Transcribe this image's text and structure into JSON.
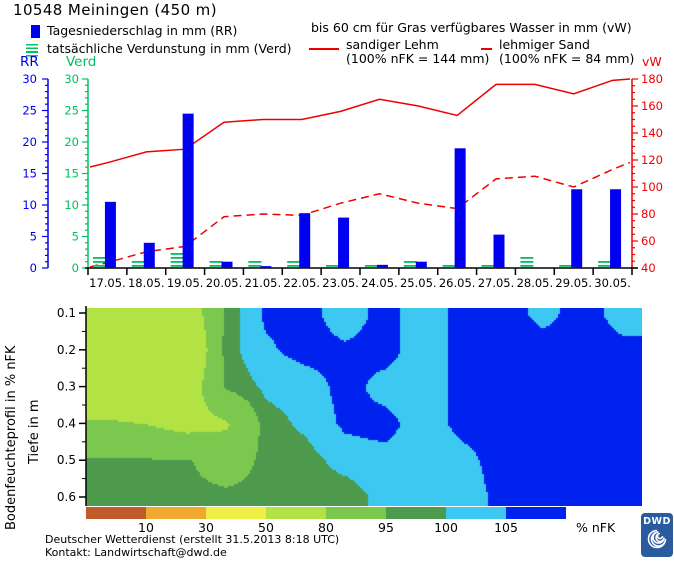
{
  "title": "10548 Meiningen (450 m)",
  "legend": {
    "rr_label": "Tagesniederschlag in mm (RR)",
    "verd_label": "tatsächliche Verdunstung in mm (Verd)",
    "vw_header": "bis 60 cm für Gras verfügbares Wasser in mm (vW)",
    "soil1_name": "sandiger Lehm",
    "soil1_capacity": "(100% nFK = 144 mm)",
    "soil2_name": "lehmiger Sand",
    "soil2_capacity": "(100% nFK = 84 mm)"
  },
  "axis_headers": {
    "left_rr": "RR",
    "left_verd": "Verd",
    "right_vw": "vW"
  },
  "colors": {
    "rr_blue": "#0000f0",
    "verd_green": "#00c060",
    "vw_red": "#ee0000",
    "axis_black": "#000000",
    "logo_blue": "#2a5b9e"
  },
  "chart_data": [
    {
      "type": "bar",
      "title": "Niederschlag, Verdunstung und verfügbares Wasser",
      "categories": [
        "17.05.",
        "18.05.",
        "19.05.",
        "20.05.",
        "21.05.",
        "22.05.",
        "23.05.",
        "24.05.",
        "25.05.",
        "26.05.",
        "27.05.",
        "28.05.",
        "29.05.",
        "30.05."
      ],
      "series": [
        {
          "name": "Tagesniederschlag in mm (RR)",
          "render": "bar",
          "axis": "left",
          "color_key": "rr_blue",
          "values": [
            10.5,
            4,
            24.5,
            1,
            0.3,
            8.7,
            8,
            0.5,
            1,
            19,
            5.3,
            0,
            12.5,
            12.5
          ]
        },
        {
          "name": "tatsächliche Verdunstung in mm (Verd)",
          "render": "dash-bar",
          "axis": "left",
          "color_key": "verd_green",
          "values": [
            2,
            1.5,
            3,
            1.5,
            1.5,
            1.5,
            1,
            1,
            1.5,
            0.5,
            0.5,
            2,
            0.8,
            1.2
          ]
        },
        {
          "name": "sandiger Lehm (vW in mm)",
          "render": "line",
          "axis": "right",
          "color_key": "vw_red",
          "values": [
            118,
            126,
            128,
            148,
            150,
            150,
            156,
            165,
            160,
            153,
            176,
            176,
            169,
            179
          ]
        },
        {
          "name": "lehmiger Sand (vW in mm)",
          "render": "dashed-line",
          "axis": "right",
          "color_key": "vw_red",
          "values": [
            44,
            52,
            56,
            78,
            80,
            79,
            88,
            95,
            88,
            84,
            106,
            108,
            100,
            113
          ]
        }
      ],
      "ylim_left": [
        0,
        30
      ],
      "yticks_left": [
        0,
        5,
        10,
        15,
        20,
        25,
        30
      ],
      "ylim_right": [
        40,
        180
      ],
      "yticks_right": [
        40,
        60,
        80,
        100,
        120,
        140,
        160,
        180
      ],
      "grid": false,
      "legend_position": "top"
    },
    {
      "type": "heatmap",
      "title": "Bodenfeuchteprofil in % nFK",
      "x_categories": [
        "17.05.",
        "18.05.",
        "19.05.",
        "20.05.",
        "21.05.",
        "22.05.",
        "23.05.",
        "24.05.",
        "25.05.",
        "26.05.",
        "27.05.",
        "28.05.",
        "29.05.",
        "30.05."
      ],
      "y_depths_m": [
        0.1,
        0.2,
        0.3,
        0.4,
        0.5,
        0.6
      ],
      "unit": "% nFK",
      "class_bounds": [
        10,
        30,
        50,
        80,
        95,
        100,
        105
      ],
      "values_pct_nfk": [
        [
          65,
          60,
          68,
          97,
          106,
          107,
          102,
          107,
          102,
          107,
          108,
          103,
          108,
          102
        ],
        [
          58,
          52,
          60,
          98,
          104,
          107,
          106,
          107,
          102,
          107,
          108,
          108,
          108,
          107
        ],
        [
          68,
          62,
          70,
          96,
          101,
          102,
          107,
          103,
          102,
          107,
          108,
          108,
          108,
          108
        ],
        [
          82,
          80,
          75,
          78,
          98,
          101,
          106,
          107,
          102,
          107,
          108,
          108,
          108,
          108
        ],
        [
          96,
          96,
          96,
          90,
          97,
          98,
          102,
          103,
          102,
          103,
          108,
          108,
          108,
          108
        ],
        [
          97,
          97,
          97,
          97,
          97,
          98,
          97,
          102,
          102,
          102,
          107,
          108,
          108,
          108
        ]
      ]
    }
  ],
  "heatmap_labels": {
    "ylabel_outer": "Bodenfeuchteprofil in % nFK",
    "ylabel_inner": "Tiefe in m",
    "depth_ticks": [
      "0.1",
      "0.2",
      "0.3",
      "0.4",
      "0.5",
      "0.6"
    ],
    "scale_ticks": [
      "10",
      "30",
      "50",
      "80",
      "95",
      "100",
      "105"
    ],
    "scale_unit": "% nFK"
  },
  "palette": {
    "lt10": "#c05a28",
    "p10_30": "#f0a830",
    "p30_50": "#eeee44",
    "p50_80": "#b2e244",
    "p80_95": "#7cc84e",
    "p95_100": "#4d9a4d",
    "p100_105": "#3cc8f0",
    "gt105": "#0022ee"
  },
  "footer": {
    "line1": "Deutscher Wetterdienst (erstellt 31.5.2013 8:18 UTC)",
    "line2": "Kontakt: Landwirtschaft@dwd.de"
  },
  "logo": {
    "text": "DWD"
  }
}
